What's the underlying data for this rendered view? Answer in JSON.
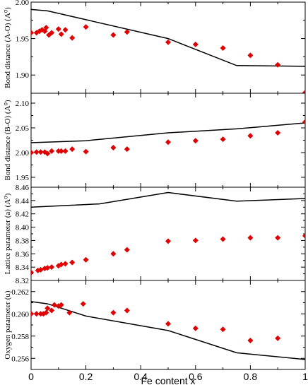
{
  "chart_data": {
    "type": "scatter",
    "xlabel": "Fe content x",
    "xlim": [
      0,
      1
    ],
    "x_ticks": [
      "0",
      "0.2",
      "0.4",
      "0.6",
      "0.8",
      "1"
    ],
    "marker_color": "#e00000",
    "line_color": "#000000",
    "panels": [
      {
        "ylabel": "Bond distance (A-O) (A⁰)",
        "ylim": [
          1.875,
          2.0
        ],
        "y_ticks": [
          "1.90",
          "1.95",
          "2.00"
        ],
        "line": [
          [
            0,
            1.99
          ],
          [
            0.06,
            1.988
          ],
          [
            0.5,
            1.95
          ],
          [
            0.75,
            1.913
          ],
          [
            1.0,
            1.912
          ]
        ],
        "points": [
          [
            0,
            1.958
          ],
          [
            0.02,
            1.958
          ],
          [
            0.03,
            1.96
          ],
          [
            0.04,
            1.962
          ],
          [
            0.05,
            1.96
          ],
          [
            0.055,
            1.965
          ],
          [
            0.065,
            1.955
          ],
          [
            0.075,
            1.958
          ],
          [
            0.1,
            1.963
          ],
          [
            0.11,
            1.956
          ],
          [
            0.125,
            1.962
          ],
          [
            0.15,
            1.951
          ],
          [
            0.2,
            1.966
          ],
          [
            0.3,
            1.955
          ],
          [
            0.35,
            1.959
          ],
          [
            0.5,
            1.945
          ],
          [
            0.6,
            1.942
          ],
          [
            0.7,
            1.937
          ],
          [
            0.8,
            1.927
          ],
          [
            0.9,
            1.914
          ],
          [
            1.0,
            1.876
          ]
        ]
      },
      {
        "ylabel": "Bond distance (B-O) (A⁰)",
        "ylim": [
          1.93,
          2.12
        ],
        "y_ticks": [
          "1.95",
          "2.00",
          "2.05",
          "2.10"
        ],
        "line": [
          [
            0,
            2.02
          ],
          [
            0.2,
            2.024
          ],
          [
            0.5,
            2.04
          ],
          [
            0.75,
            2.048
          ],
          [
            1.0,
            2.06
          ]
        ],
        "points": [
          [
            0,
            2.0
          ],
          [
            0.02,
            2.001
          ],
          [
            0.035,
            2.001
          ],
          [
            0.05,
            2.001
          ],
          [
            0.06,
            1.998
          ],
          [
            0.075,
            2.003
          ],
          [
            0.1,
            2.003
          ],
          [
            0.11,
            2.003
          ],
          [
            0.125,
            2.003
          ],
          [
            0.15,
            2.007
          ],
          [
            0.2,
            2.002
          ],
          [
            0.3,
            2.01
          ],
          [
            0.35,
            2.007
          ],
          [
            0.5,
            2.021
          ],
          [
            0.6,
            2.024
          ],
          [
            0.7,
            2.027
          ],
          [
            0.8,
            2.034
          ],
          [
            0.9,
            2.04
          ],
          [
            1.0,
            2.062
          ]
        ]
      },
      {
        "ylabel": "Lattice parameter (a) (A⁰)",
        "ylim": [
          8.32,
          8.46
        ],
        "y_ticks": [
          "8.32",
          "8.34",
          "8.36",
          "8.38",
          "8.40",
          "8.42",
          "8.44",
          "8.46"
        ],
        "line": [
          [
            0,
            8.43
          ],
          [
            0.25,
            8.435
          ],
          [
            0.5,
            8.452
          ],
          [
            0.75,
            8.439
          ],
          [
            1.0,
            8.443
          ]
        ],
        "points": [
          [
            0,
            8.332
          ],
          [
            0.025,
            8.335
          ],
          [
            0.035,
            8.336
          ],
          [
            0.05,
            8.338
          ],
          [
            0.06,
            8.339
          ],
          [
            0.075,
            8.34
          ],
          [
            0.1,
            8.342
          ],
          [
            0.11,
            8.344
          ],
          [
            0.125,
            8.345
          ],
          [
            0.15,
            8.347
          ],
          [
            0.2,
            8.351
          ],
          [
            0.3,
            8.36
          ],
          [
            0.35,
            8.366
          ],
          [
            0.5,
            8.379
          ],
          [
            0.6,
            8.38
          ],
          [
            0.7,
            8.382
          ],
          [
            0.8,
            8.384
          ],
          [
            0.9,
            8.384
          ],
          [
            1.0,
            8.387
          ]
        ]
      },
      {
        "ylabel": "Oxygen parameter (u)",
        "ylim": [
          0.255,
          0.263
        ],
        "y_ticks": [
          "0.256",
          "0.258",
          "0.260",
          "0.262"
        ],
        "line": [
          [
            0,
            0.2611
          ],
          [
            0.06,
            0.2609
          ],
          [
            0.2,
            0.2598
          ],
          [
            0.5,
            0.2585
          ],
          [
            0.75,
            0.2565
          ],
          [
            1.0,
            0.2559
          ]
        ],
        "points": [
          [
            0,
            0.26
          ],
          [
            0.02,
            0.26
          ],
          [
            0.035,
            0.26
          ],
          [
            0.045,
            0.26
          ],
          [
            0.055,
            0.2601
          ],
          [
            0.06,
            0.2605
          ],
          [
            0.075,
            0.2603
          ],
          [
            0.085,
            0.2608
          ],
          [
            0.1,
            0.2607
          ],
          [
            0.11,
            0.2608
          ],
          [
            0.14,
            0.2601
          ],
          [
            0.19,
            0.2609
          ],
          [
            0.3,
            0.2601
          ],
          [
            0.35,
            0.2603
          ],
          [
            0.5,
            0.2591
          ],
          [
            0.6,
            0.2587
          ],
          [
            0.7,
            0.2586
          ],
          [
            0.8,
            0.2576
          ],
          [
            0.9,
            0.2578
          ]
        ]
      }
    ]
  }
}
